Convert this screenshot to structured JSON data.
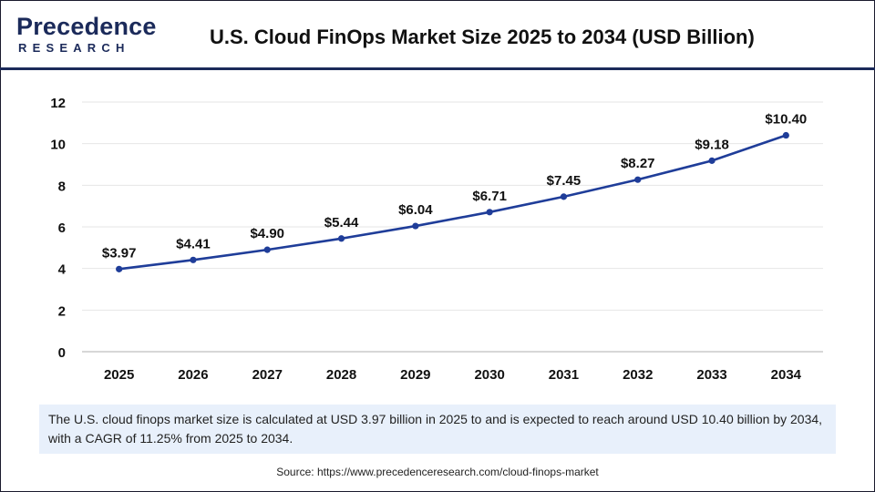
{
  "header": {
    "logo_top": "Precedence",
    "logo_bottom": "RESEARCH",
    "title": "U.S. Cloud FinOps Market Size 2025 to 2034 (USD Billion)"
  },
  "colors": {
    "brand": "#1b2a5a",
    "line": "#1f3d99",
    "marker": "#1f3d99",
    "note_bg": "#e8f0fb"
  },
  "chart_data": {
    "type": "line",
    "title": "U.S. Cloud FinOps Market Size 2025 to 2034 (USD Billion)",
    "xlabel": "",
    "ylabel": "",
    "categories": [
      "2025",
      "2026",
      "2027",
      "2028",
      "2029",
      "2030",
      "2031",
      "2032",
      "2033",
      "2034"
    ],
    "series": [
      {
        "name": "Market Size (USD Billion)",
        "values": [
          3.97,
          4.41,
          4.9,
          5.44,
          6.04,
          6.71,
          7.45,
          8.27,
          9.18,
          10.4
        ],
        "labels": [
          "$3.97",
          "$4.41",
          "$4.90",
          "$5.44",
          "$6.04",
          "$6.71",
          "$7.45",
          "$8.27",
          "$9.18",
          "$10.40"
        ]
      }
    ],
    "ylim": [
      0,
      12
    ],
    "yticks": [
      0,
      2,
      4,
      6,
      8,
      10,
      12
    ],
    "ytick_labels": [
      "0",
      "2",
      "4",
      "6",
      "8",
      "10",
      "12"
    ],
    "grid": true,
    "legend": "none"
  },
  "note": {
    "text": "The U.S. cloud finops market size is calculated at USD 3.97 billion in 2025 to and is expected to reach around USD 10.40 billion by 2034, with a CAGR of 11.25% from 2025 to 2034."
  },
  "source": {
    "text": "Source: https://www.precedenceresearch.com/cloud-finops-market"
  }
}
